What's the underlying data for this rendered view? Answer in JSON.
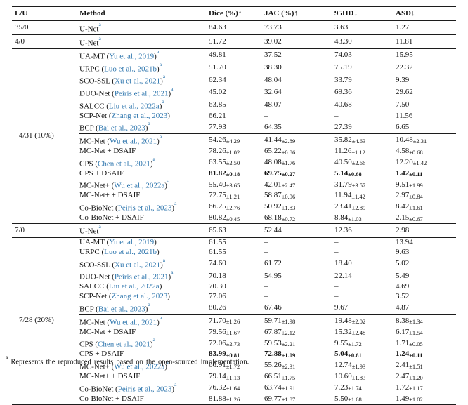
{
  "colors": {
    "link": "#2e76ae",
    "rule": "#1c1c1c",
    "text": "#141414",
    "background": "#ffffff"
  },
  "table": {
    "columns": [
      {
        "label": "L/U"
      },
      {
        "label": "Method"
      },
      {
        "label": "Dice (%)↑"
      },
      {
        "label": "JAC (%)↑"
      },
      {
        "label": "95HD↓"
      },
      {
        "label": "ASD↓"
      }
    ],
    "sections": [
      {
        "lu": "35/0",
        "type": "single",
        "rows": [
          {
            "method": {
              "name": "U-Net",
              "cite": null,
              "sup": true
            },
            "vals": [
              "84.63",
              "73.73",
              "3.63",
              "1.27"
            ]
          }
        ]
      },
      {
        "lu": "4/0",
        "type": "single",
        "rows": [
          {
            "method": {
              "name": "U-Net",
              "cite": null,
              "sup": true
            },
            "vals": [
              "51.72",
              "39.02",
              "43.30",
              "11.81"
            ]
          }
        ]
      },
      {
        "lu": "4/31 (10%)",
        "type": "group",
        "subgroups": [
          [
            {
              "method": {
                "name": "UA-MT",
                "cite": "Yu et al., 2019",
                "sup": true
              },
              "vals": [
                "49.81",
                "37.52",
                "74.03",
                "15.95"
              ]
            },
            {
              "method": {
                "name": "URPC",
                "cite": "Luo et al., 2021b",
                "sup": true
              },
              "vals": [
                "51.70",
                "38.30",
                "75.19",
                "22.32"
              ]
            },
            {
              "method": {
                "name": "SCO-SSL",
                "cite": "Xu et al., 2021",
                "sup": true
              },
              "vals": [
                "62.34",
                "48.04",
                "33.79",
                "9.39"
              ]
            },
            {
              "method": {
                "name": "DUO-Net",
                "cite": "Peiris et al., 2021",
                "sup": true
              },
              "vals": [
                "45.02",
                "32.64",
                "69.36",
                "29.62"
              ]
            },
            {
              "method": {
                "name": "SALCC",
                "cite": "Liu et al., 2022a",
                "sup": true
              },
              "vals": [
                "63.85",
                "48.07",
                "40.68",
                "7.50"
              ]
            },
            {
              "method": {
                "name": "SCP-Net",
                "cite": "Zhang et al., 2023",
                "sup": false
              },
              "vals": [
                "66.21",
                "–",
                "–",
                "11.56"
              ]
            },
            {
              "method": {
                "name": "BCP",
                "cite": "Bai et al., 2023",
                "sup": true
              },
              "vals": [
                "77.93",
                "64.35",
                "27.39",
                "6.65"
              ]
            }
          ],
          [
            {
              "method": {
                "name": "MC-Net",
                "cite": "Wu et al., 2021",
                "sup": true
              },
              "vals": [
                {
                  "v": "54.26",
                  "pm": "4.29"
                },
                {
                  "v": "41.44",
                  "pm": "2.89"
                },
                {
                  "v": "35.82",
                  "pm": "4.63"
                },
                {
                  "v": "10.48",
                  "pm": "2.31"
                }
              ]
            },
            {
              "method": {
                "name": "MC-Net + DSAIF",
                "cite": null,
                "sup": false
              },
              "vals": [
                {
                  "v": "78.26",
                  "pm": "1.02"
                },
                {
                  "v": "65.22",
                  "pm": "0.86"
                },
                {
                  "v": "11.26",
                  "pm": "1.12"
                },
                {
                  "v": "4.58",
                  "pm": "0.68"
                }
              ]
            },
            {
              "method": {
                "name": "CPS",
                "cite": "Chen et al., 2021",
                "sup": true
              },
              "vals": [
                {
                  "v": "63.55",
                  "pm": "2.50"
                },
                {
                  "v": "48.08",
                  "pm": "1.76"
                },
                {
                  "v": "40.50",
                  "pm": "2.66"
                },
                {
                  "v": "12.20",
                  "pm": "1.42"
                }
              ]
            },
            {
              "method": {
                "name": "CPS + DSAIF",
                "cite": null,
                "sup": false
              },
              "bold": true,
              "vals": [
                {
                  "v": "81.82",
                  "pm": "0.18"
                },
                {
                  "v": "69.75",
                  "pm": "0.27"
                },
                {
                  "v": "5.14",
                  "pm": "0.68"
                },
                {
                  "v": "1.42",
                  "pm": "0.11"
                }
              ]
            },
            {
              "method": {
                "name": "MC-Net+",
                "cite": "Wu et al., 2022a",
                "sup": true
              },
              "vals": [
                {
                  "v": "55.40",
                  "pm": "3.65"
                },
                {
                  "v": "42.01",
                  "pm": "2.47"
                },
                {
                  "v": "31.79",
                  "pm": "3.57"
                },
                {
                  "v": "9.51",
                  "pm": "1.99"
                }
              ]
            },
            {
              "method": {
                "name": "MC-Net+ + DSAIF",
                "cite": null,
                "sup": false
              },
              "vals": [
                {
                  "v": "72.75",
                  "pm": "1.21"
                },
                {
                  "v": "58.87",
                  "pm": "0.96"
                },
                {
                  "v": "11.94",
                  "pm": "1.42"
                },
                {
                  "v": "2.97",
                  "pm": "0.84"
                }
              ]
            },
            {
              "method": {
                "name": "Co-BioNet",
                "cite": "Peiris et al., 2023",
                "sup": true
              },
              "vals": [
                {
                  "v": "66.25",
                  "pm": "2.76"
                },
                {
                  "v": "50.92",
                  "pm": "1.83"
                },
                {
                  "v": "23.41",
                  "pm": "2.89"
                },
                {
                  "v": "8.42",
                  "pm": "1.61"
                }
              ]
            },
            {
              "method": {
                "name": "Co-BioNet + DSAIF",
                "cite": null,
                "sup": false
              },
              "vals": [
                {
                  "v": "80.82",
                  "pm": "0.45"
                },
                {
                  "v": "68.18",
                  "pm": "0.72"
                },
                {
                  "v": "8.84",
                  "pm": "1.03"
                },
                {
                  "v": "2.15",
                  "pm": "0.67"
                }
              ]
            }
          ]
        ]
      },
      {
        "lu": "7/0",
        "type": "single",
        "rows": [
          {
            "method": {
              "name": "U-Net",
              "cite": null,
              "sup": true
            },
            "vals": [
              "65.63",
              "52.44",
              "12.36",
              "2.98"
            ]
          }
        ]
      },
      {
        "lu": "7/28 (20%)",
        "type": "group",
        "subgroups": [
          [
            {
              "method": {
                "name": "UA-MT",
                "cite": "Yu et al., 2019",
                "sup": false
              },
              "vals": [
                "61.55",
                "–",
                "–",
                "13.94"
              ]
            },
            {
              "method": {
                "name": "URPC",
                "cite": "Luo et al., 2021b",
                "sup": false
              },
              "vals": [
                "61.55",
                "–",
                "–",
                "9.63"
              ]
            },
            {
              "method": {
                "name": "SCO-SSL",
                "cite": "Xu et al., 2021",
                "sup": true
              },
              "vals": [
                "74.60",
                "61.72",
                "18.40",
                "5.02"
              ]
            },
            {
              "method": {
                "name": "DUO-Net",
                "cite": "Peiris et al., 2021",
                "sup": true
              },
              "vals": [
                "70.18",
                "54.95",
                "22.14",
                "5.49"
              ]
            },
            {
              "method": {
                "name": "SALCC",
                "cite": "Liu et al., 2022a",
                "sup": false
              },
              "vals": [
                "70.30",
                "–",
                "–",
                "4.69"
              ]
            },
            {
              "method": {
                "name": "SCP-Net",
                "cite": "Zhang et al., 2023",
                "sup": false
              },
              "vals": [
                "77.06",
                "–",
                "–",
                "3.52"
              ]
            },
            {
              "method": {
                "name": "BCP",
                "cite": "Bai et al., 2023",
                "sup": true
              },
              "vals": [
                "80.26",
                "67.46",
                "9.67",
                "4.87"
              ]
            }
          ],
          [
            {
              "method": {
                "name": "MC-Net",
                "cite": "Wu et al., 2021",
                "sup": true
              },
              "vals": [
                {
                  "v": "71.70",
                  "pm": "1.26"
                },
                {
                  "v": "59.71",
                  "pm": "1.98"
                },
                {
                  "v": "19.48",
                  "pm": "2.02"
                },
                {
                  "v": "8.38",
                  "pm": "1.34"
                }
              ]
            },
            {
              "method": {
                "name": "MC-Net + DSAIF",
                "cite": null,
                "sup": false
              },
              "vals": [
                {
                  "v": "79.56",
                  "pm": "1.67"
                },
                {
                  "v": "67.87",
                  "pm": "2.12"
                },
                {
                  "v": "15.32",
                  "pm": "2.48"
                },
                {
                  "v": "6.17",
                  "pm": "1.54"
                }
              ]
            },
            {
              "method": {
                "name": "CPS",
                "cite": "Chen et al., 2021",
                "sup": true
              },
              "vals": [
                {
                  "v": "72.06",
                  "pm": "2.73"
                },
                {
                  "v": "59.53",
                  "pm": "2.21"
                },
                {
                  "v": "9.55",
                  "pm": "1.72"
                },
                {
                  "v": "1.71",
                  "pm": "0.05"
                }
              ]
            },
            {
              "method": {
                "name": "CPS + DSAIF",
                "cite": null,
                "sup": false
              },
              "bold": true,
              "vals": [
                {
                  "v": "83.99",
                  "pm": "0.81"
                },
                {
                  "v": "72.88",
                  "pm": "1.09"
                },
                {
                  "v": "5.04",
                  "pm": "0.61"
                },
                {
                  "v": "1.24",
                  "pm": "0.11"
                }
              ]
            },
            {
              "method": {
                "name": "MC-Net+",
                "cite": "Wu et al., 2022a",
                "sup": true
              },
              "vals": [
                {
                  "v": "66.91",
                  "pm": "1.72"
                },
                {
                  "v": "55.26",
                  "pm": "2.31"
                },
                {
                  "v": "12.74",
                  "pm": "1.93"
                },
                {
                  "v": "2.41",
                  "pm": "1.51"
                }
              ]
            },
            {
              "method": {
                "name": "MC-Net+ + DSAIF",
                "cite": null,
                "sup": false
              },
              "vals": [
                {
                  "v": "79.14",
                  "pm": "1.13"
                },
                {
                  "v": "66.51",
                  "pm": "1.75"
                },
                {
                  "v": "10.60",
                  "pm": "1.83"
                },
                {
                  "v": "2.47",
                  "pm": "1.20"
                }
              ]
            },
            {
              "method": {
                "name": "Co-BioNet",
                "cite": "Peiris et al., 2023",
                "sup": true
              },
              "vals": [
                {
                  "v": "76.32",
                  "pm": "1.64"
                },
                {
                  "v": "63.74",
                  "pm": "1.91"
                },
                {
                  "v": "7.23",
                  "pm": "1.74"
                },
                {
                  "v": "1.72",
                  "pm": "1.17"
                }
              ]
            },
            {
              "method": {
                "name": "Co-BioNet + DSAIF",
                "cite": null,
                "sup": false
              },
              "vals": [
                {
                  "v": "81.88",
                  "pm": "1.26"
                },
                {
                  "v": "69.77",
                  "pm": "1.87"
                },
                {
                  "v": "5.50",
                  "pm": "1.68"
                },
                {
                  "v": "1.49",
                  "pm": "1.02"
                }
              ]
            }
          ]
        ]
      }
    ],
    "footnote": {
      "marker": "a",
      "text": "Represents the reproduced results based on the open-sourced implementation."
    }
  }
}
